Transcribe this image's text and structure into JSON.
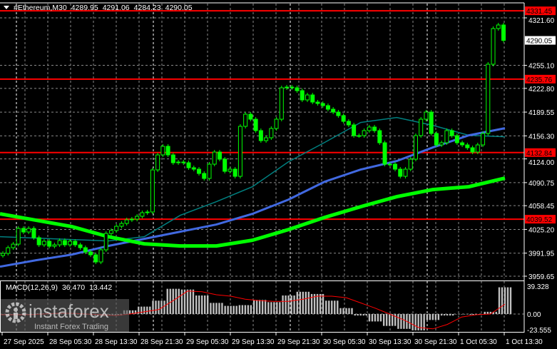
{
  "header": {
    "symbol": "#Ethereum,M30",
    "open": "4289.95",
    "high": "4291.06",
    "low": "4284.23",
    "close": "4290.05",
    "menu_icon": "triangle-down-icon"
  },
  "watermark": {
    "brand": "instaforex",
    "tagline": "Instant Forex Trading",
    "logo_icon": "gear-person-icon"
  },
  "colors": {
    "background": "#000000",
    "candle": "#00ff00",
    "level": "#ff0000",
    "ma_fast": "#008080",
    "ma_mid": "#4169e1",
    "ma_slow": "#00ff00",
    "macd_hist": "#c0c0c0",
    "macd_signal": "#ff0000",
    "grid": "#8a8a8a"
  },
  "chart_data": [
    {
      "type": "candlestick",
      "title": "#Ethereum,M30",
      "timeframe": "M30",
      "price_ticks": [
        "4321.60",
        "4255.10",
        "4222.80",
        "4189.55",
        "4156.30",
        "4124.00",
        "4090.75",
        "4058.45",
        "4025.20",
        "3991.95",
        "3959.65"
      ],
      "ylim": [
        3959.65,
        4321.6
      ],
      "time_ticks": [
        "27 Sep 2025",
        "28 Sep 05:30",
        "28 Sep 13:30",
        "28 Sep 21:30",
        "29 Sep 05:30",
        "29 Sep 13:30",
        "29 Sep 21:30",
        "30 Sep 05:30",
        "30 Sep 13:30",
        "30 Sep 21:30",
        "1 Oct 05:30",
        "1 Oct 13:30"
      ],
      "grid": true,
      "current_price": "4290.05",
      "levels": [
        "4331.45",
        "4235.76",
        "4132.84",
        "4039.52"
      ],
      "closes": [
        3991.6,
        3999.6,
        4004.6,
        4026.6,
        4021.6,
        4026.6,
        4013.6,
        4003.6,
        4008.6,
        4001.6,
        4003.6,
        4009.6,
        4003.6,
        4008.6,
        4003.6,
        3999.6,
        3993.6,
        3989.6,
        3979.6,
        3996.6,
        4019.6,
        4023.6,
        4029.6,
        4033.6,
        4038.6,
        4039.6,
        4043.6,
        4048.6,
        4049.6,
        4108.6,
        4129.6,
        4141.6,
        4129.6,
        4118.6,
        4119.6,
        4118.6,
        4111.6,
        4109.6,
        4103.6,
        4096.6,
        4116.6,
        4133.6,
        4123.6,
        4106.6,
        4109.6,
        4099.6,
        4169.6,
        4186.6,
        4179.6,
        4163.6,
        4149.6,
        4153.6,
        4166.6,
        4179.6,
        4223.6,
        4224.6,
        4223.6,
        4219.6,
        4206.6,
        4213.6,
        4203.6,
        4201.6,
        4198.6,
        4193.6,
        4189.6,
        4184.6,
        4176.6,
        4171.6,
        4156.6,
        4156.6,
        4163.6,
        4168.6,
        4163.6,
        4146.6,
        4116.6,
        4116.6,
        4109.6,
        4099.6,
        4109.6,
        4123.6,
        4156.6,
        4179.6,
        4189.6,
        4159.6,
        4143.6,
        4146.6,
        4163.6,
        4156.6,
        4146.6,
        4143.6,
        4139.6,
        4133.6,
        4143.6,
        4159.6,
        4256.6,
        4306.6,
        4311.6,
        4290.05
      ],
      "moving_averages": [
        {
          "color": "#008080",
          "values": [
            4015,
            4013,
            4011,
            4009,
            4015,
            4045,
            4064,
            4085,
            4120,
            4147,
            4175,
            4182,
            4171,
            4157,
            4155
          ]
        },
        {
          "color": "#4169e1",
          "values": [
            3973,
            3982,
            3990,
            4002,
            4012,
            4022,
            4032,
            4047,
            4067,
            4092,
            4109,
            4121,
            4140,
            4157,
            4167
          ]
        },
        {
          "color": "#00ff00",
          "values": [
            4047,
            4038,
            4029,
            4015,
            4005,
            4002,
            4002,
            4010,
            4025,
            4042,
            4057,
            4071,
            4081,
            4085,
            4097
          ]
        }
      ]
    },
    {
      "type": "bar+line",
      "title": "MACD(12,26,9)",
      "value_macd": "36.470",
      "value_signal": "13.442",
      "y_ticks": [
        "39.328",
        "0.00",
        "-23.555"
      ],
      "ylim": [
        -23.555,
        39.328
      ],
      "histogram": [
        -1,
        -1,
        -1,
        1,
        1,
        0,
        -1,
        -3,
        -2,
        5,
        10,
        18,
        34,
        33,
        25,
        15,
        11,
        12,
        19,
        16,
        25,
        30,
        27,
        18,
        8,
        -2,
        -10,
        -16,
        -20,
        -22,
        -8,
        -2,
        0,
        -1,
        3,
        36
      ],
      "signal": [
        -1,
        -1,
        -1,
        0,
        1,
        1,
        0,
        -1,
        -2,
        0,
        3,
        6,
        18,
        31,
        30,
        26,
        24,
        20,
        18,
        17,
        17,
        20,
        24,
        24,
        22,
        15,
        8,
        0,
        -8,
        -18,
        -20,
        -14,
        -4,
        -1,
        0,
        13.4
      ]
    }
  ]
}
